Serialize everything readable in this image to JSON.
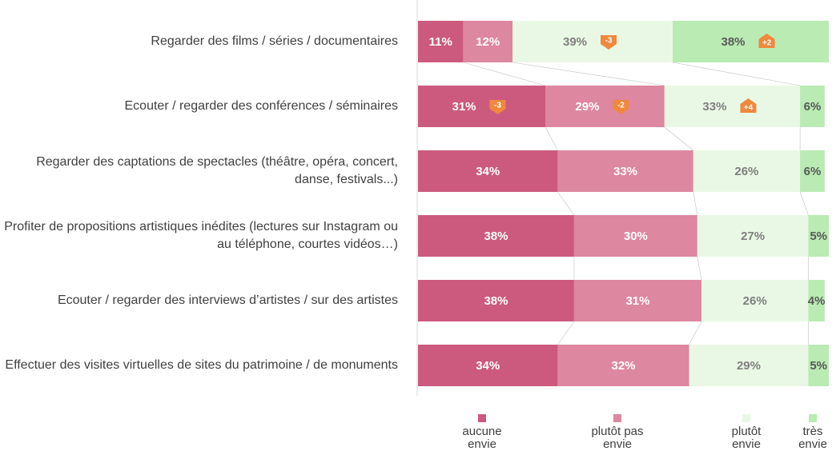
{
  "chart_data": {
    "type": "bar",
    "orientation": "horizontal",
    "stacked": true,
    "categories": [
      "Regarder des films / séries / documentaires",
      "Ecouter / regarder des conférences / séminaires",
      "Regarder des captations de spectacles (théâtre, opéra, concert, danse, festivals...)",
      "Profiter de propositions artistiques inédites (lectures sur Instagram ou au téléphone, courtes vidéos…)",
      "Ecouter / regarder des interviews d’artistes / sur des artistes",
      "Effectuer des visites virtuelles de sites du patrimoine / de monuments"
    ],
    "xlim": [
      0,
      100
    ],
    "series": [
      {
        "name": "aucune envie",
        "color": "#cc5a7e",
        "label_color": "#ffffff",
        "values": [
          11,
          31,
          34,
          38,
          38,
          34
        ],
        "value_labels": [
          "11%",
          "31%",
          "34%",
          "38%",
          "38%",
          "34%"
        ],
        "deltas": [
          null,
          "-3",
          null,
          null,
          null,
          null
        ]
      },
      {
        "name": "plutôt pas envie",
        "color": "#dd87a0",
        "label_color": "#ffffff",
        "values": [
          12,
          29,
          33,
          30,
          31,
          32
        ],
        "value_labels": [
          "12%",
          "29%",
          "33%",
          "30%",
          "31%",
          "32%"
        ],
        "deltas": [
          null,
          "-2",
          null,
          null,
          null,
          null
        ]
      },
      {
        "name": "plutôt envie",
        "color": "#e9f8e4",
        "label_color": "#7f7f7f",
        "values": [
          39,
          33,
          26,
          27,
          26,
          29
        ],
        "value_labels": [
          "39%",
          "33%",
          "26%",
          "27%",
          "26%",
          "29%"
        ],
        "deltas": [
          "-3",
          "+4",
          null,
          null,
          null,
          null
        ]
      },
      {
        "name": "très envie",
        "color": "#b9ebb3",
        "label_color": "#595959",
        "values": [
          38,
          6,
          6,
          5,
          4,
          5
        ],
        "value_labels": [
          "38%",
          "6%",
          "6%",
          "5%",
          "4%",
          "5%"
        ],
        "deltas": [
          "+2",
          null,
          null,
          null,
          null,
          null
        ]
      }
    ],
    "badge_color": "#f0883e"
  }
}
